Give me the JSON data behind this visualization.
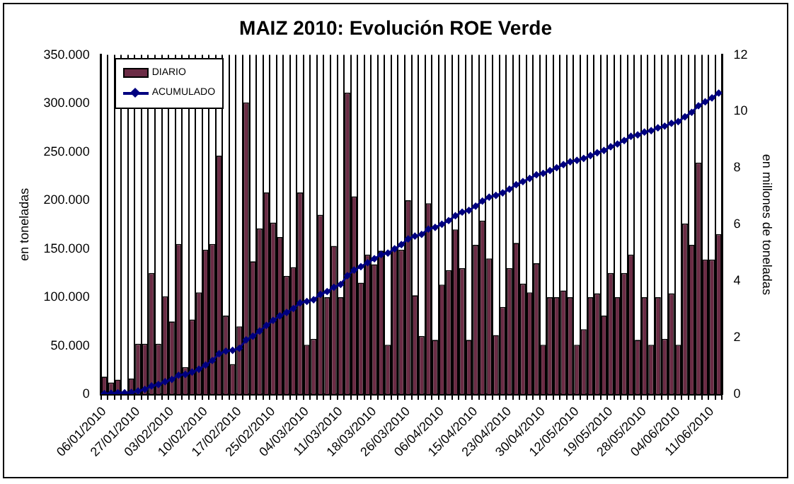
{
  "chart_data": {
    "type": "bar",
    "title": "MAIZ 2010: Evolución ROE Verde",
    "ylabel": "en toneladas",
    "y2label": "en millones de toneladas",
    "categories": [
      "06/01/2010",
      null,
      null,
      null,
      null,
      "27/01/2010",
      null,
      null,
      null,
      null,
      "03/02/2010",
      null,
      null,
      null,
      null,
      "10/02/2010",
      null,
      null,
      null,
      null,
      "17/02/2010",
      null,
      null,
      null,
      null,
      "25/02/2010",
      null,
      null,
      null,
      null,
      "04/03/2010",
      null,
      null,
      null,
      null,
      "11/03/2010",
      null,
      null,
      null,
      null,
      "18/03/2010",
      null,
      null,
      null,
      null,
      "26/03/2010",
      null,
      null,
      null,
      null,
      "06/04/2010",
      null,
      null,
      null,
      null,
      "15/04/2010",
      null,
      null,
      null,
      null,
      "23/04/2010",
      null,
      null,
      null,
      null,
      "30/04/2010",
      null,
      null,
      null,
      null,
      "12/05/2010",
      null,
      null,
      null,
      null,
      "19/05/2010",
      null,
      null,
      null,
      null,
      "28/05/2010",
      null,
      null,
      null,
      null,
      "04/06/2010",
      null,
      null,
      null,
      null,
      "11/06/2010",
      null
    ],
    "series": [
      {
        "name": "DIARIO",
        "color": "#6b2c45",
        "values": [
          18000,
          12000,
          15000,
          1000,
          16000,
          52000,
          52000,
          125000,
          52000,
          101000,
          75000,
          155000,
          28000,
          77000,
          105000,
          149000,
          155000,
          246000,
          81000,
          31000,
          70000,
          301000,
          137000,
          171000,
          208000,
          177000,
          162000,
          122000,
          131000,
          208000,
          51000,
          57000,
          185000,
          100000,
          153000,
          100000,
          311000,
          204000,
          115000,
          144000,
          134000,
          148000,
          51000,
          150000,
          149000,
          200000,
          102000,
          60000,
          197000,
          56000,
          113000,
          128000,
          170000,
          130000,
          56000,
          154000,
          179000,
          140000,
          61000,
          90000,
          130000,
          156000,
          114000,
          105000,
          135000,
          51000,
          100000,
          100000,
          107000,
          100000,
          51000,
          67000,
          100000,
          104000,
          81000,
          125000,
          100000,
          125000,
          144000,
          56000,
          100000,
          51000,
          100000,
          57000,
          104000,
          51000,
          176000,
          154000,
          239000,
          139000,
          139000,
          165000
        ]
      },
      {
        "name": "ACUMULADO",
        "type": "line",
        "axis": "y2",
        "color": "#000080",
        "values": [
          0.02,
          0.03,
          0.05,
          0.05,
          0.06,
          0.11,
          0.17,
          0.29,
          0.34,
          0.44,
          0.52,
          0.67,
          0.7,
          0.78,
          0.88,
          1.03,
          1.19,
          1.43,
          1.52,
          1.55,
          1.62,
          1.92,
          2.05,
          2.23,
          2.43,
          2.61,
          2.77,
          2.89,
          3.03,
          3.23,
          3.28,
          3.34,
          3.53,
          3.63,
          3.78,
          3.88,
          4.19,
          4.39,
          4.51,
          4.65,
          4.79,
          4.94,
          4.99,
          5.14,
          5.29,
          5.49,
          5.59,
          5.65,
          5.84,
          5.9,
          6.01,
          6.14,
          6.31,
          6.44,
          6.5,
          6.65,
          6.83,
          6.97,
          7.03,
          7.12,
          7.25,
          7.41,
          7.52,
          7.63,
          7.76,
          7.81,
          7.91,
          8.01,
          8.12,
          8.22,
          8.27,
          8.34,
          8.44,
          8.54,
          8.62,
          8.75,
          8.85,
          8.97,
          9.12,
          9.17,
          9.27,
          9.32,
          9.42,
          9.48,
          9.58,
          9.64,
          9.81,
          9.97,
          10.2,
          10.34,
          10.48,
          10.65
        ]
      }
    ],
    "ylim": [
      0,
      350000
    ],
    "yticks": [
      {
        "value": 0,
        "label": "0"
      },
      {
        "value": 50000,
        "label": "50.000"
      },
      {
        "value": 100000,
        "label": "100.000"
      },
      {
        "value": 150000,
        "label": "150.000"
      },
      {
        "value": 200000,
        "label": "200.000"
      },
      {
        "value": 250000,
        "label": "250.000"
      },
      {
        "value": 300000,
        "label": "300.000"
      },
      {
        "value": 350000,
        "label": "350.000"
      }
    ],
    "y2lim": [
      0,
      12
    ],
    "y2ticks": [
      0,
      2,
      4,
      6,
      8,
      10,
      12
    ],
    "grid": "x",
    "legend": "top left",
    "marker": "diamond"
  }
}
